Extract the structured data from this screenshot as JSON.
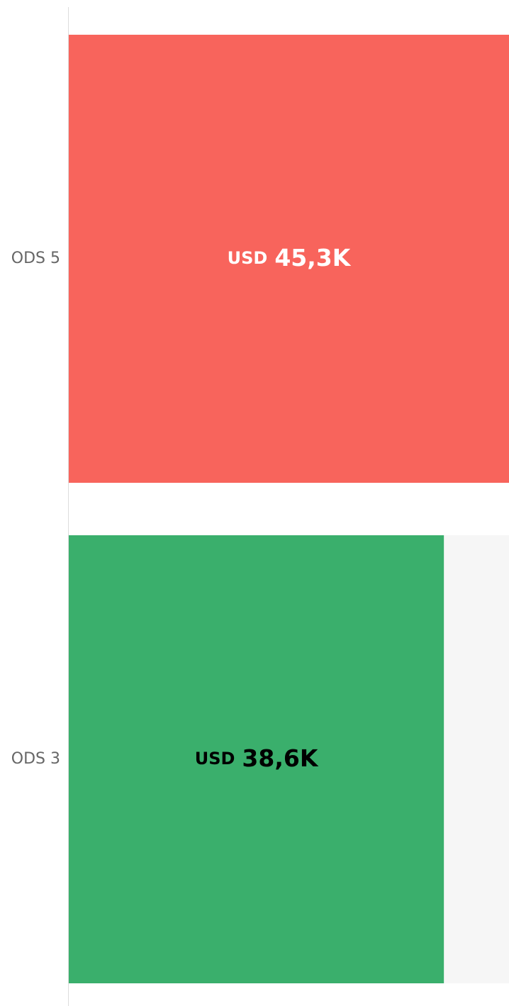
{
  "chart_data": {
    "type": "barh",
    "categories": [
      "ODS 5",
      "ODS 3"
    ],
    "values": [
      45300,
      38600
    ],
    "value_labels": [
      "45,3K",
      "38,6K"
    ],
    "value_prefix": "USD",
    "colors": [
      "#f8645c",
      "#3aaf6c"
    ],
    "label_colors": [
      "#ffffff",
      "#000000"
    ],
    "track_color": "#f6f6f6",
    "xlim": [
      0,
      45300
    ]
  }
}
